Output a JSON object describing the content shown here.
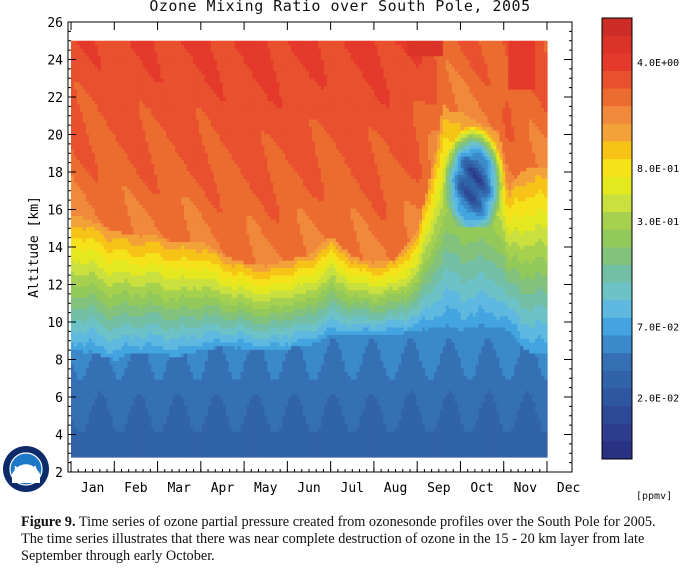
{
  "chart_data": {
    "type": "heatmap",
    "title": "Ozone Mixing Ratio over South Pole, 2005",
    "ylabel": "Altitude [km]",
    "xlabel": "",
    "ylim": [
      2,
      26
    ],
    "yticks": [
      2,
      4,
      6,
      8,
      10,
      12,
      14,
      16,
      18,
      20,
      22,
      24,
      26
    ],
    "months": [
      "Jan",
      "Feb",
      "Mar",
      "Apr",
      "May",
      "Jun",
      "Jul",
      "Aug",
      "Sep",
      "Oct",
      "Nov",
      "Dec"
    ],
    "data_range": {
      "month_start": 0,
      "month_end": 11,
      "alt_min": 2.8,
      "alt_max": 25.0
    },
    "colorbar": {
      "unit": "[ppmv]",
      "labels": [
        {
          "text": "4.0E+00",
          "value": 4.0
        },
        {
          "text": "8.0E-01",
          "value": 0.8
        },
        {
          "text": "3.0E-01",
          "value": 0.3
        },
        {
          "text": "7.0E-02",
          "value": 0.07
        },
        {
          "text": "2.0E-02",
          "value": 0.02
        }
      ],
      "colors": [
        "#cc2e27",
        "#dc3328",
        "#e4392b",
        "#e8502e",
        "#ec6c30",
        "#f0893b",
        "#f3a23a",
        "#f6c316",
        "#f5e21a",
        "#e4e81e",
        "#c9e03e",
        "#a6d14e",
        "#93c95a",
        "#82c27d",
        "#73bfa5",
        "#6cc2c6",
        "#5fb8e0",
        "#43a4e0",
        "#3a89c9",
        "#3670b4",
        "#3163a8",
        "#2f56a0",
        "#2e4996",
        "#2b3d8c",
        "#293183"
      ]
    },
    "profile": {
      "note_x_unit": "month index (0 = start of Jan)",
      "x": [
        0,
        0.5,
        1,
        1.5,
        2,
        2.5,
        3,
        3.5,
        4,
        4.5,
        5,
        5.5,
        6,
        6.5,
        7,
        7.5,
        8,
        8.2,
        8.4,
        8.6,
        8.8,
        9.0,
        9.3,
        9.6,
        9.9,
        10.1,
        10.3,
        10.6,
        11
      ],
      "lower_mixed_top": [
        8.5,
        8.4,
        8.0,
        8.4,
        8.3,
        8.2,
        8.5,
        8.7,
        8.6,
        8.5,
        8.6,
        8.8,
        9.3,
        9.3,
        9.3,
        9.4,
        9.5,
        9.6,
        9.8,
        9.8,
        9.8,
        9.6,
        9.8,
        9.8,
        9.8,
        9.6,
        9.0,
        8.4,
        8.3
      ],
      "high_ozone_bottom": [
        15.8,
        15.4,
        14.9,
        14.6,
        14.6,
        14.2,
        14.3,
        13.6,
        13.2,
        13.0,
        13.3,
        13.6,
        14.6,
        13.5,
        13.2,
        13.4,
        14.8,
        16.8,
        18.8,
        21.6,
        21.2,
        21.2,
        20.8,
        20.4,
        20.2,
        17.0,
        17.8,
        18.3,
        18.2
      ],
      "depletion_core": {
        "x_range": [
          8.6,
          10.0
        ],
        "alt_range": [
          15.0,
          21.0
        ],
        "min_value": 0.02
      }
    },
    "caption": {
      "label": "Figure 9.",
      "text": " Time series of ozone partial pressure created from ozonesonde profiles over the South Pole for 2005.  The time series  illustrates that there was  near complete destruction of ozone in the 15 - 20 km layer from late September through early October."
    },
    "logo": {
      "text": "NOAA"
    },
    "colors": {
      "frame": "#000000",
      "background": "#ffffff"
    }
  }
}
